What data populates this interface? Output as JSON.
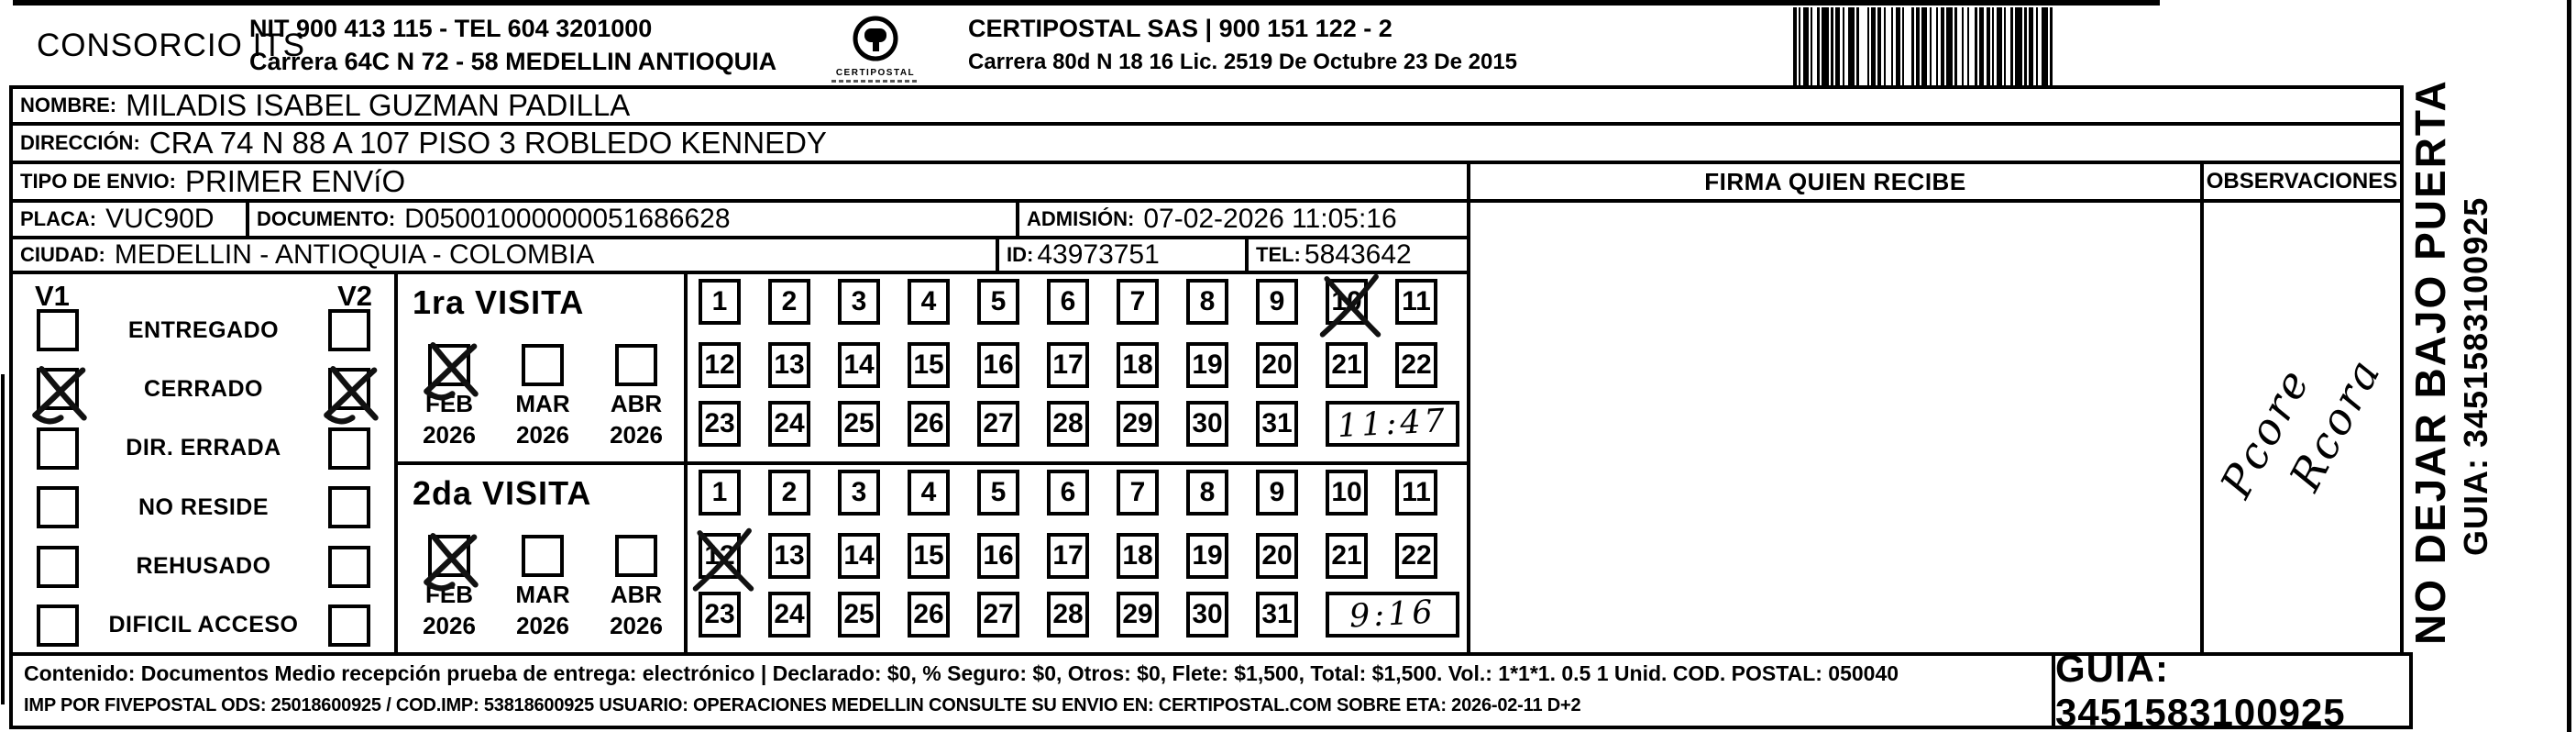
{
  "header": {
    "company": "CONSORCIO ITS",
    "nit_line": "NIT 900 413 115 - TEL 604 3201000",
    "address_line": "Carrera 64C N 72 - 58 MEDELLIN ANTIOQUIA",
    "logo_caption": "CERTIPOSTAL",
    "right_company": "CERTIPOSTAL SAS | 900 151 122 - 2",
    "right_address": "Carrera 80d N 18 16  Lic. 2519 De Octubre 23 De 2015"
  },
  "recipient": {
    "nombre_label": "NOMBRE:",
    "nombre": "MILADIS ISABEL GUZMAN PADILLA",
    "direccion_label": "DIRECCIÓN:",
    "direccion": "CRA 74 N 88 A 107 PISO 3 ROBLEDO KENNEDY",
    "tipo_envio_label": "TIPO DE ENVIO:",
    "tipo_envio": "PRIMER ENVíO",
    "placa_label": "PLACA:",
    "placa": "VUC90D",
    "documento_label": "DOCUMENTO:",
    "documento": "D05001000000051686628",
    "admision_label": "ADMISIÓN:",
    "admision": "07-02-2026 11:05:16",
    "ciudad_label": "CIUDAD:",
    "ciudad": "MEDELLIN - ANTIOQUIA - COLOMBIA",
    "id_label": "ID:",
    "id": "43973751",
    "tel_label": "TEL:",
    "tel": "5843642"
  },
  "columns": {
    "firma": "FIRMA QUIEN RECIBE",
    "observaciones": "OBSERVACIONES"
  },
  "status": {
    "v1": "V1",
    "v2": "V2",
    "options": [
      {
        "label": "ENTREGADO",
        "v1": false,
        "v2": false
      },
      {
        "label": "CERRADO",
        "v1": true,
        "v2": true
      },
      {
        "label": "DIR. ERRADA",
        "v1": false,
        "v2": false
      },
      {
        "label": "NO RESIDE",
        "v1": false,
        "v2": false
      },
      {
        "label": "REHUSADO",
        "v1": false,
        "v2": false
      },
      {
        "label": "DIFICIL ACCESO",
        "v1": false,
        "v2": false
      }
    ]
  },
  "visits": [
    {
      "title": "1ra VISITA",
      "months": [
        {
          "label": "FEB",
          "year": "2026",
          "checked": true
        },
        {
          "label": "MAR",
          "year": "2026",
          "checked": false
        },
        {
          "label": "ABR",
          "year": "2026",
          "checked": false
        }
      ],
      "day_rows": [
        [
          "1",
          "2",
          "3",
          "4",
          "5",
          "6",
          "7",
          "8",
          "9",
          "10",
          "11"
        ],
        [
          "12",
          "13",
          "14",
          "15",
          "16",
          "17",
          "18",
          "19",
          "20",
          "21",
          "22"
        ],
        [
          "23",
          "24",
          "25",
          "26",
          "27",
          "28",
          "29",
          "30",
          "31"
        ]
      ],
      "crossed_day": "10",
      "time_note": "11:47"
    },
    {
      "title": "2da VISITA",
      "months": [
        {
          "label": "FEB",
          "year": "2026",
          "checked": true
        },
        {
          "label": "MAR",
          "year": "2026",
          "checked": false
        },
        {
          "label": "ABR",
          "year": "2026",
          "checked": false
        }
      ],
      "day_rows": [
        [
          "1",
          "2",
          "3",
          "4",
          "5",
          "6",
          "7",
          "8",
          "9",
          "10",
          "11"
        ],
        [
          "12",
          "13",
          "14",
          "15",
          "16",
          "17",
          "18",
          "19",
          "20",
          "21",
          "22"
        ],
        [
          "23",
          "24",
          "25",
          "26",
          "27",
          "28",
          "29",
          "30",
          "31"
        ]
      ],
      "crossed_day": "12",
      "time_note": "9:16"
    }
  ],
  "signature": {
    "line1": "Pcore",
    "line2": "Rcora"
  },
  "side_notes": {
    "no_dejar": "NO DEJAR BAJO PUERTA",
    "guia_vertical": "GUIA: 3451583100925"
  },
  "footer": {
    "line1": "Contenido: Documentos Medio recepción prueba de entrega: electrónico | Declarado: $0, % Seguro: $0, Otros: $0, Flete: $1,500, Total: $1,500. Vol.: 1*1*1. 0.5  1 Unid. COD. POSTAL: 050040",
    "line2": "IMP POR FIVEPOSTAL ODS: 25018600925 / COD.IMP: 53818600925 USUARIO: OPERACIONES MEDELLIN CONSULTE SU ENVIO EN: CERTIPOSTAL.COM SOBRE ETA: 2026-02-11 D+2",
    "guia": "GUIA: 3451583100925"
  }
}
